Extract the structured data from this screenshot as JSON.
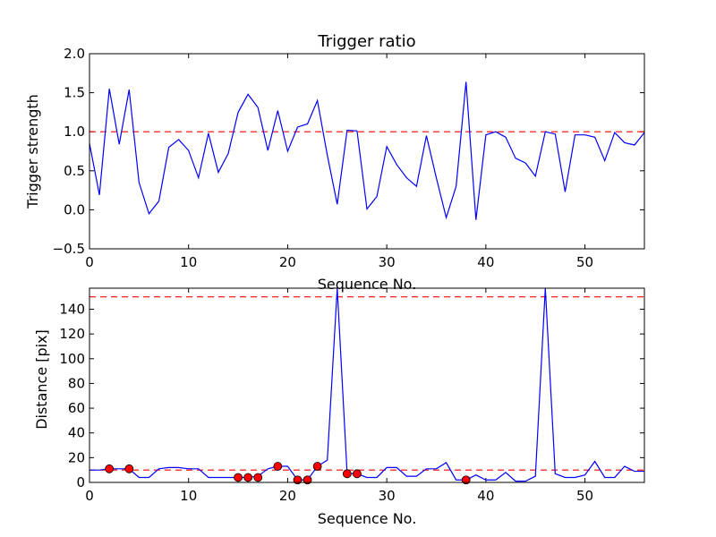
{
  "figure": {
    "background": "#ffffff"
  },
  "chart_data": [
    {
      "type": "line",
      "title": "Trigger ratio",
      "xlabel": "Sequence No.",
      "ylabel": "Trigger strength",
      "xlim": [
        0,
        56
      ],
      "ylim": [
        -0.5,
        2.0
      ],
      "xticks": [
        0,
        10,
        20,
        30,
        40,
        50
      ],
      "xtick_labels": [
        "0",
        "10",
        "20",
        "30",
        "40",
        "50"
      ],
      "yticks": [
        -0.5,
        0.0,
        0.5,
        1.0,
        1.5,
        2.0
      ],
      "ytick_labels": [
        "−0.5",
        "0.0",
        "0.5",
        "1.0",
        "1.5",
        "2.0"
      ],
      "grid": false,
      "series": [
        {
          "color": "#0000ff",
          "x": [
            0,
            1,
            2,
            3,
            4,
            5,
            6,
            7,
            8,
            9,
            10,
            11,
            12,
            13,
            14,
            15,
            16,
            17,
            18,
            19,
            20,
            21,
            22,
            23,
            24,
            25,
            26,
            27,
            28,
            29,
            30,
            31,
            32,
            33,
            34,
            35,
            36,
            37,
            38,
            39,
            40,
            41,
            42,
            43,
            44,
            45,
            46,
            47,
            48,
            49,
            50,
            51,
            52,
            53,
            54,
            55,
            56
          ],
          "y": [
            0.85,
            0.19,
            1.55,
            0.84,
            1.54,
            0.35,
            -0.05,
            0.11,
            0.8,
            0.9,
            0.76,
            0.41,
            0.98,
            0.48,
            0.72,
            1.25,
            1.48,
            1.31,
            0.76,
            1.27,
            0.75,
            1.06,
            1.1,
            1.4,
            0.7,
            0.07,
            1.02,
            1.01,
            0.01,
            0.17,
            0.81,
            0.58,
            0.41,
            0.3,
            0.95,
            0.41,
            -0.1,
            0.3,
            1.64,
            -0.13,
            0.96,
            1.0,
            0.93,
            0.66,
            0.6,
            0.43,
            1.0,
            0.97,
            0.23,
            0.96,
            0.96,
            0.93,
            0.63,
            0.99,
            0.86,
            0.83,
            0.99
          ]
        }
      ],
      "reference_lines": [
        {
          "y": 1.0,
          "color": "#ff0000",
          "style": "dashed"
        }
      ]
    },
    {
      "type": "line",
      "title": "",
      "xlabel": "Sequence No.",
      "ylabel": "Distance [pix]",
      "xlim": [
        0,
        56
      ],
      "ylim": [
        0,
        157
      ],
      "xticks": [
        0,
        10,
        20,
        30,
        40,
        50
      ],
      "xtick_labels": [
        "0",
        "10",
        "20",
        "30",
        "40",
        "50"
      ],
      "yticks": [
        0,
        20,
        40,
        60,
        80,
        100,
        120,
        140
      ],
      "ytick_labels": [
        "0",
        "20",
        "40",
        "60",
        "80",
        "100",
        "120",
        "140"
      ],
      "grid": false,
      "series": [
        {
          "color": "#0000ff",
          "x": [
            0,
            1,
            2,
            3,
            4,
            5,
            6,
            7,
            8,
            9,
            10,
            11,
            12,
            13,
            14,
            15,
            16,
            17,
            18,
            19,
            20,
            21,
            22,
            23,
            24,
            25,
            26,
            27,
            28,
            29,
            30,
            31,
            32,
            33,
            34,
            35,
            36,
            37,
            38,
            39,
            40,
            41,
            42,
            43,
            44,
            45,
            46,
            47,
            48,
            49,
            50,
            51,
            52,
            53,
            54,
            55,
            56
          ],
          "y": [
            10,
            10,
            11,
            11,
            11,
            4,
            4,
            11,
            12,
            12,
            11,
            11,
            4,
            4,
            4,
            4,
            4,
            5,
            11,
            13,
            13,
            2,
            2,
            13,
            18,
            157,
            7,
            7,
            4,
            4,
            12,
            12,
            5,
            5,
            11,
            11,
            16,
            2,
            2,
            6,
            2,
            2,
            8,
            1,
            1,
            5,
            157,
            7,
            4,
            4,
            6,
            17,
            4,
            4,
            13,
            9,
            9
          ]
        }
      ],
      "markers": {
        "color": "#ff0000",
        "x": [
          2,
          4,
          15,
          16,
          17,
          19,
          21,
          22,
          23,
          26,
          27,
          38
        ],
        "y": [
          11,
          11,
          4,
          4,
          4,
          13,
          2,
          2,
          13,
          7,
          7,
          2
        ]
      },
      "reference_lines": [
        {
          "y": 10,
          "color": "#ff0000",
          "style": "dashed"
        },
        {
          "y": 150,
          "color": "#ff0000",
          "style": "dashed"
        }
      ]
    }
  ]
}
